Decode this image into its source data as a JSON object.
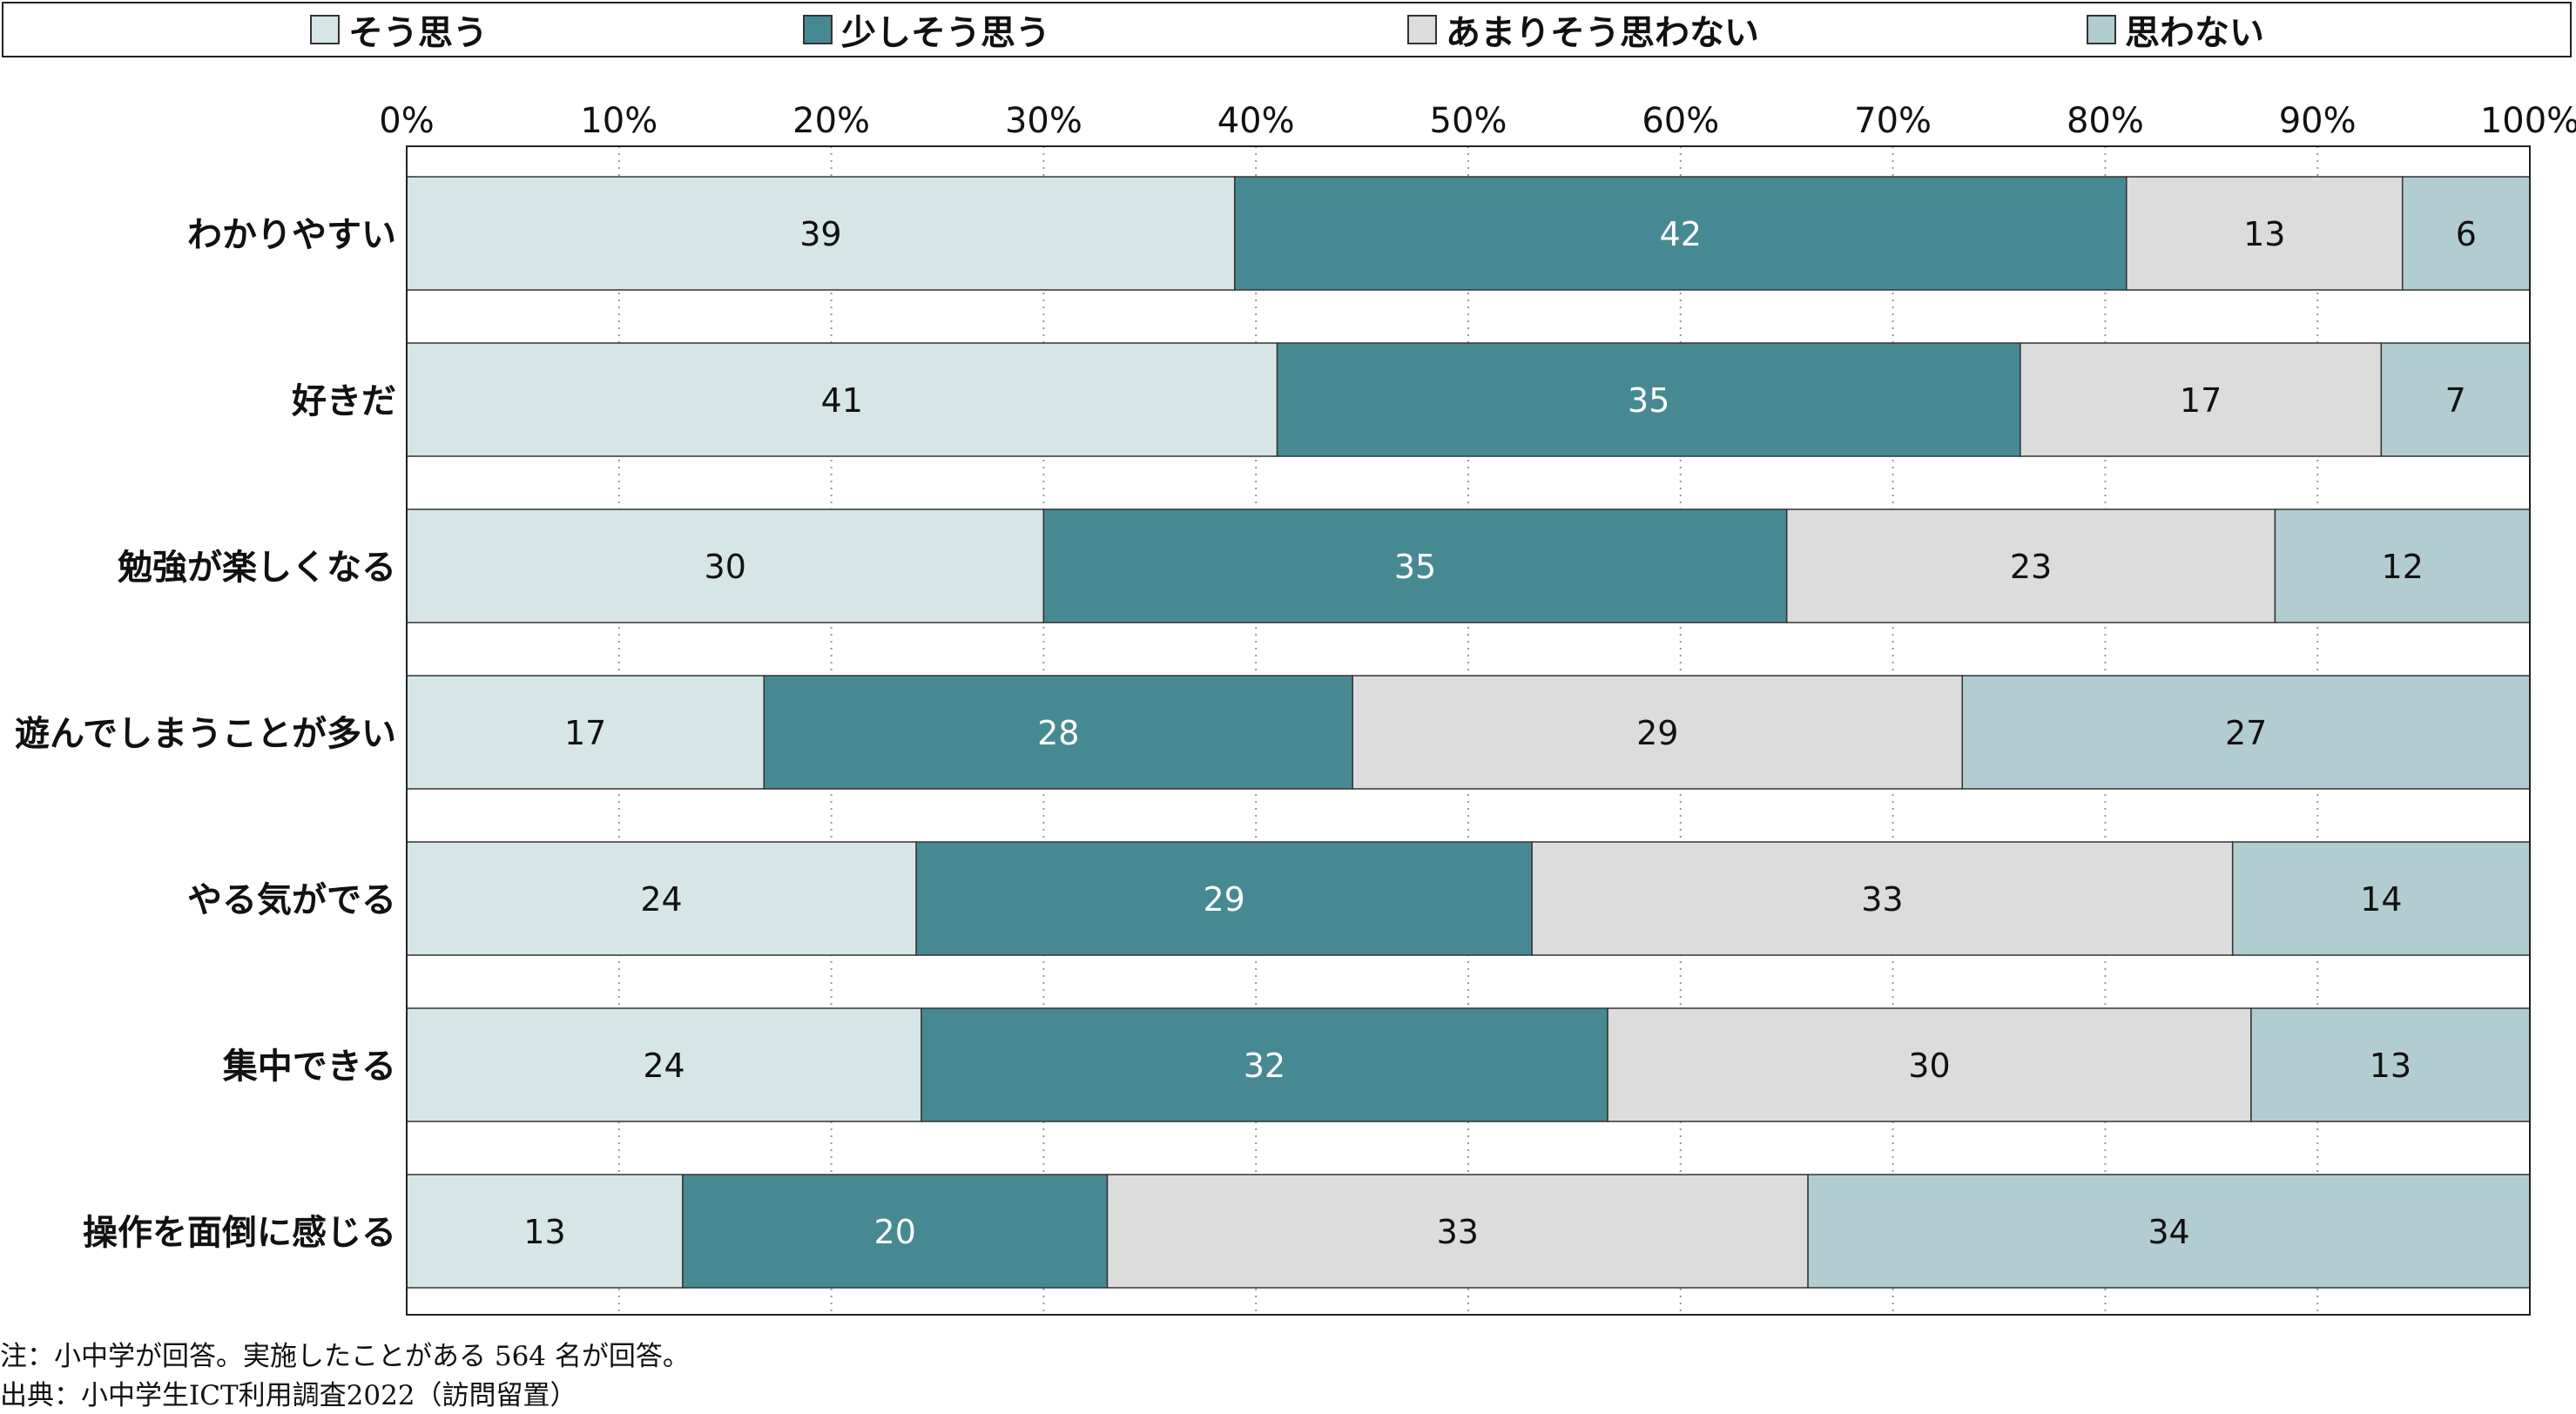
{
  "chart_data": {
    "type": "bar",
    "orientation": "horizontal",
    "stacked": true,
    "percent_stacked": true,
    "categories": [
      "わかりやすい",
      "好きだ",
      "勉強が楽しくなる",
      "遊んでしまうことが多い",
      "やる気がでる",
      "集中できる",
      "操作を面倒に感じる"
    ],
    "series": [
      {
        "name": "そう思う",
        "color": "#d6e5e6",
        "values": [
          39,
          41,
          30,
          17,
          24,
          24,
          13
        ]
      },
      {
        "name": "少しそう思う",
        "color": "#478993",
        "values": [
          42,
          35,
          35,
          28,
          29,
          32,
          20
        ]
      },
      {
        "name": "あまりそう思わない",
        "color": "#dcdcdc",
        "values": [
          13,
          17,
          23,
          29,
          33,
          30,
          33
        ]
      },
      {
        "name": "思わない",
        "color": "#b2cdd1",
        "values": [
          6,
          7,
          12,
          27,
          14,
          13,
          34
        ]
      }
    ],
    "xticks": [
      "0%",
      "10%",
      "20%",
      "30%",
      "40%",
      "50%",
      "60%",
      "70%",
      "80%",
      "90%",
      "100%"
    ],
    "xlim": [
      0,
      100
    ],
    "grid": "vertical dotted",
    "legend": "top"
  },
  "notes": {
    "note": "注：小中学が回答。実施したことがある 564 名が回答。",
    "source": "出典：小中学生ICT利用調査2022（訪問留置）"
  }
}
